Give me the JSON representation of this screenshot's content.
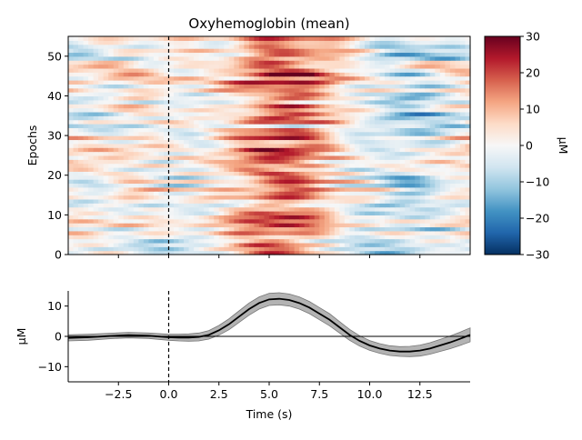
{
  "chart_data": [
    {
      "type": "heatmap",
      "title": "Oxyhemoglobin (mean)",
      "ylabel": "Epochs",
      "xlim": [
        -5,
        15
      ],
      "ylim": [
        0,
        55
      ],
      "xticks": [
        -2.5,
        0.0,
        2.5,
        5.0,
        7.5,
        10.0,
        12.5
      ],
      "xtick_labels": [
        "−2.5",
        "0.0",
        "2.5",
        "5.0",
        "7.5",
        "10.0",
        "12.5"
      ],
      "yticks": [
        0,
        10,
        20,
        30,
        40,
        50
      ],
      "yticks_labels": [
        "0",
        "10",
        "20",
        "30",
        "40",
        "50"
      ],
      "n_epochs": 55,
      "colormap": "RdBu_r",
      "vline_x": 0,
      "colorbar": {
        "label": "µM",
        "range": [
          -30,
          30
        ],
        "ticks": [
          30,
          20,
          10,
          0,
          -10,
          -20,
          -30
        ],
        "tick_labels": [
          "30",
          "20",
          "10",
          "0",
          "−10",
          "−20",
          "−30"
        ]
      }
    },
    {
      "type": "line",
      "xlabel": "Time (s)",
      "ylabel": "µM",
      "xlim": [
        -5,
        15
      ],
      "ylim": [
        -15,
        15
      ],
      "xticks": [
        -2.5,
        0.0,
        2.5,
        5.0,
        7.5,
        10.0,
        12.5
      ],
      "xtick_labels": [
        "−2.5",
        "0.0",
        "2.5",
        "5.0",
        "7.5",
        "10.0",
        "12.5"
      ],
      "yticks": [
        10,
        0,
        -10
      ],
      "ytick_labels": [
        "10",
        "0",
        "−10"
      ],
      "vline_x": 0,
      "hline_y": 0,
      "x": [
        -5.0,
        -4.0,
        -3.0,
        -2.0,
        -1.0,
        0.0,
        0.5,
        1.0,
        1.5,
        2.0,
        2.5,
        3.0,
        3.5,
        4.0,
        4.5,
        5.0,
        5.5,
        6.0,
        6.5,
        7.0,
        7.5,
        8.0,
        8.5,
        9.0,
        9.5,
        10.0,
        10.5,
        11.0,
        11.5,
        12.0,
        12.5,
        13.0,
        13.5,
        14.0,
        14.5,
        15.0
      ],
      "y": [
        -0.5,
        -0.3,
        0.1,
        0.4,
        0.2,
        -0.3,
        -0.4,
        -0.4,
        -0.2,
        0.5,
        2.0,
        4.0,
        6.5,
        9.0,
        11.0,
        12.2,
        12.4,
        12.0,
        11.0,
        9.5,
        7.5,
        5.5,
        3.0,
        0.5,
        -1.5,
        -3.0,
        -4.0,
        -4.7,
        -5.0,
        -5.0,
        -4.7,
        -4.0,
        -3.0,
        -2.0,
        -0.8,
        0.5
      ],
      "ci": [
        1.0,
        1.0,
        0.9,
        0.9,
        0.9,
        1.0,
        1.1,
        1.2,
        1.3,
        1.4,
        1.6,
        1.8,
        1.9,
        2.0,
        2.0,
        2.0,
        2.0,
        2.0,
        2.0,
        2.0,
        2.0,
        2.0,
        1.9,
        1.8,
        1.7,
        1.6,
        1.6,
        1.6,
        1.6,
        1.7,
        1.8,
        1.9,
        2.0,
        2.1,
        2.2,
        2.3
      ]
    }
  ]
}
